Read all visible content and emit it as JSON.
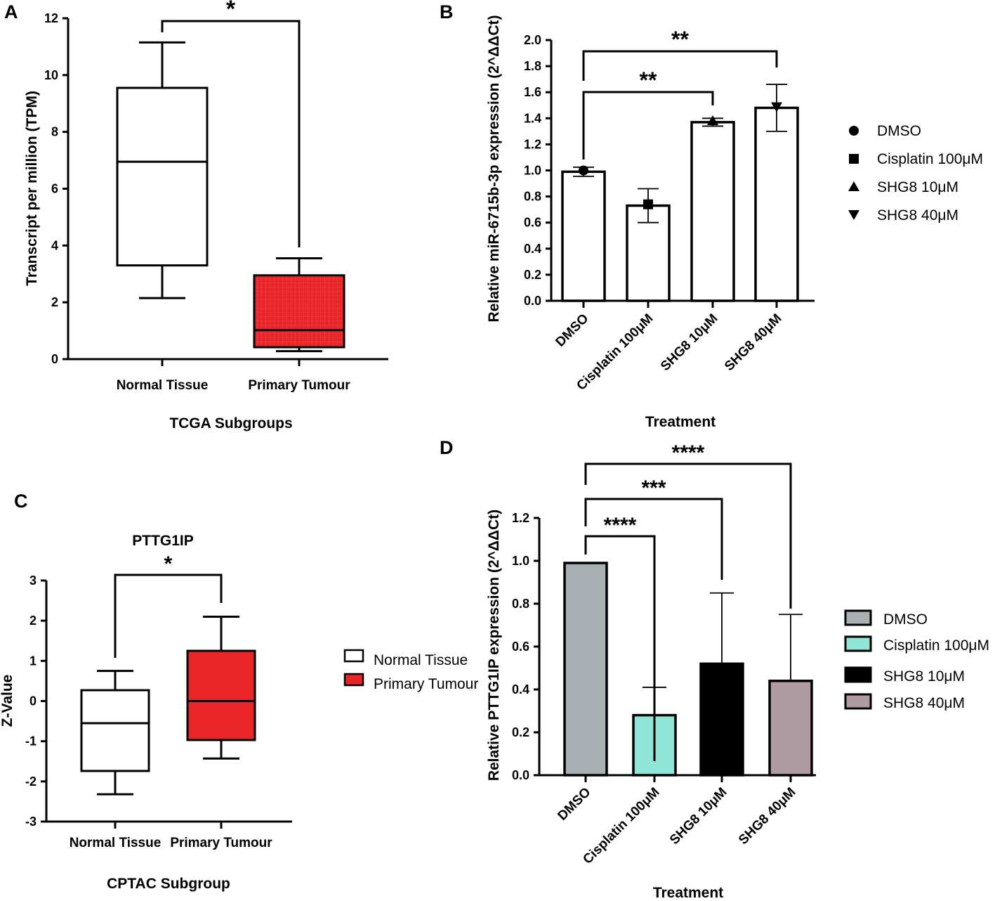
{
  "colors": {
    "tumour_red": "#e8262a",
    "tumour_red_grid": "#ff4a4a",
    "dmso_grey": "#a9b0b4",
    "cisplatin_teal": "#8fe5d6",
    "shg8_10_black": "#000000",
    "shg8_40_mauve": "#b09ba2"
  },
  "chart_data": [
    {
      "panel": "A",
      "type": "box",
      "title": "",
      "xlabel": "TCGA Subgroups",
      "ylabel": "Transcript per million (TPM)",
      "ylim": [
        0,
        12
      ],
      "yticks": [
        "0",
        "2",
        "4",
        "6",
        "8",
        "10",
        "12"
      ],
      "categories": [
        "Normal Tissue",
        "Primary Tumour"
      ],
      "boxes": [
        {
          "name": "Normal Tissue",
          "min": 2.15,
          "q1": 3.3,
          "median": 6.95,
          "q3": 9.55,
          "max": 11.15,
          "fill": "white"
        },
        {
          "name": "Primary Tumour",
          "min": 0.28,
          "q1": 0.42,
          "median": 1.02,
          "q3": 2.95,
          "max": 3.55,
          "fill": "red"
        }
      ],
      "significance": [
        {
          "from": 0,
          "to": 1,
          "label": "*"
        }
      ]
    },
    {
      "panel": "B",
      "type": "bar",
      "xlabel": "Treatment",
      "ylabel": "Relative miR-6715b-3p expression (2^ΔΔCt)",
      "ylim": [
        0,
        2.0
      ],
      "yticks": [
        "0.0",
        "0.2",
        "0.4",
        "0.6",
        "0.8",
        "1.0",
        "1.2",
        "1.4",
        "1.6",
        "1.8",
        "2.0"
      ],
      "categories": [
        "DMSO",
        "Cisplatin 100μM",
        "SHG8 10μM",
        "SHG8 40μM"
      ],
      "values": [
        0.99,
        0.73,
        1.37,
        1.48
      ],
      "errors": [
        0.035,
        0.13,
        0.03,
        0.18
      ],
      "points": [
        1.0,
        0.74,
        1.38,
        1.49
      ],
      "markers": [
        "circle",
        "square",
        "triangle-up",
        "triangle-down"
      ],
      "legend": [
        "DMSO",
        "Cisplatin 100μM",
        "SHG8 10μM",
        "SHG8 40μM"
      ],
      "significance": [
        {
          "from": 0,
          "to": 2,
          "label": "**"
        },
        {
          "from": 0,
          "to": 3,
          "label": "**"
        }
      ]
    },
    {
      "panel": "C",
      "type": "box",
      "title": "PTTG1IP",
      "xlabel": "CPTAC Subgroup",
      "ylabel": "Z-Value",
      "ylim": [
        -3,
        3
      ],
      "yticks": [
        "-3",
        "-2",
        "-1",
        "0",
        "1",
        "2",
        "3"
      ],
      "categories": [
        "Normal Tissue",
        "Primary Tumour"
      ],
      "boxes": [
        {
          "name": "Normal Tissue",
          "min": -2.32,
          "q1": -1.74,
          "median": -0.55,
          "q3": 0.27,
          "max": 0.75,
          "fill": "white"
        },
        {
          "name": "Primary Tumour",
          "min": -1.43,
          "q1": -0.97,
          "median": 0.0,
          "q3": 1.25,
          "max": 2.1,
          "fill": "red"
        }
      ],
      "legend": [
        "Normal Tissue",
        "Primary Tumour"
      ],
      "significance": [
        {
          "from": 0,
          "to": 1,
          "label": "*"
        }
      ]
    },
    {
      "panel": "D",
      "type": "bar",
      "xlabel": "Treatment",
      "ylabel": "Relative PTTG1IP expression (2^ΔΔCt)",
      "ylim": [
        0,
        1.2
      ],
      "yticks": [
        "0.0",
        "0.2",
        "0.4",
        "0.6",
        "0.8",
        "1.0",
        "1.2"
      ],
      "categories": [
        "DMSO",
        "Cisplatin 100μM",
        "SHG8 10μM",
        "SHG8 40μM"
      ],
      "values": [
        0.99,
        0.28,
        0.52,
        0.44
      ],
      "errors": [
        0.0,
        0.13,
        0.33,
        0.31
      ],
      "legend": [
        "DMSO",
        "Cisplatin 100μM",
        "SHG8 10μM",
        "SHG8 40μM"
      ],
      "significance": [
        {
          "from": 0,
          "to": 1,
          "label": "****"
        },
        {
          "from": 0,
          "to": 2,
          "label": "***"
        },
        {
          "from": 0,
          "to": 3,
          "label": "****"
        }
      ]
    }
  ]
}
